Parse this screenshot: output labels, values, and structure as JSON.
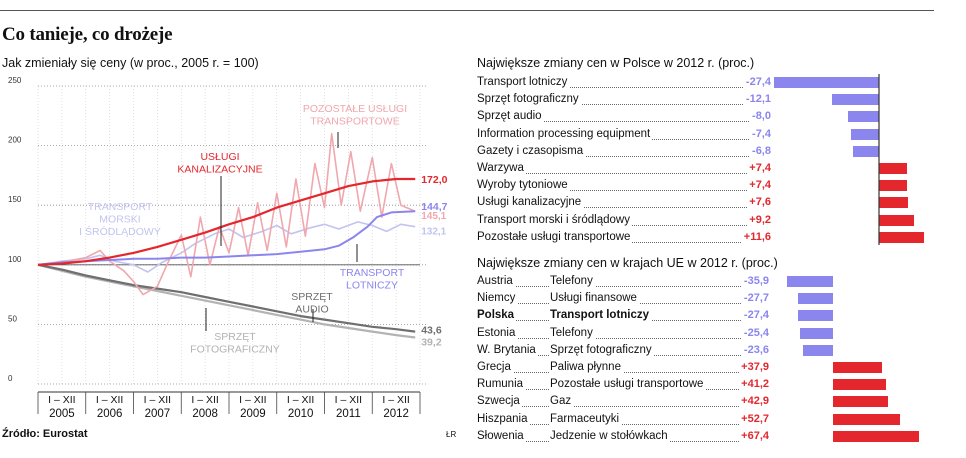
{
  "title": "Co tanieje, co drożeje",
  "subtitle": "Jak zmieniały się ceny (w proc., 2005 r. = 100)",
  "source": "Źródło: Eurostat",
  "credit": "ŁR",
  "colors": {
    "red": "#e3272d",
    "pink": "#f0a7ae",
    "lavender": "#c2c3f0",
    "blue": "#8a86ee",
    "darkgray": "#6f6f6f",
    "lightgray": "#b3b3b3"
  },
  "chart_data": [
    {
      "type": "line",
      "title": "Jak zmieniały się ceny (w proc., 2005 r. = 100)",
      "ylim": [
        0,
        250
      ],
      "yticks": [
        0,
        50,
        100,
        150,
        200,
        250
      ],
      "ytick_labels": [
        "0",
        "50",
        "100",
        "150",
        "200",
        "250"
      ],
      "month_labels": [
        "I – XII",
        "I – XII",
        "I – XII",
        "I – XII",
        "I – XII",
        "I – XII",
        "I – XII",
        "I – XII"
      ],
      "years": [
        "2005",
        "2006",
        "2007",
        "2008",
        "2009",
        "2010",
        "2011",
        "2012"
      ],
      "series": [
        {
          "name": "Usługi kanalizacyjne",
          "label": "USŁUGI KANALIZACYJNE",
          "end_label": "172,0",
          "color": "#e3272d",
          "points": [
            [
              2005.0,
              100
            ],
            [
              2005.5,
              101
            ],
            [
              2006.0,
              103
            ],
            [
              2006.5,
              106
            ],
            [
              2007.0,
              110
            ],
            [
              2007.5,
              115
            ],
            [
              2008.0,
              121
            ],
            [
              2008.5,
              127
            ],
            [
              2009.0,
              134
            ],
            [
              2009.5,
              140
            ],
            [
              2010.0,
              148
            ],
            [
              2010.5,
              154
            ],
            [
              2011.0,
              160
            ],
            [
              2011.5,
              166
            ],
            [
              2012.0,
              170
            ],
            [
              2012.5,
              172
            ],
            [
              2012.9,
              172
            ]
          ]
        },
        {
          "name": "Pozostałe usługi transportowe",
          "label": "POZOSTAŁE USŁUGI TRANSPORTOWE",
          "end_label": "145,1",
          "color": "#f0a7ae",
          "points": [
            [
              2005.0,
              100
            ],
            [
              2005.6,
              103
            ],
            [
              2006.0,
              106
            ],
            [
              2006.3,
              112
            ],
            [
              2006.5,
              103
            ],
            [
              2006.8,
              95
            ],
            [
              2007.0,
              86
            ],
            [
              2007.2,
              75
            ],
            [
              2007.5,
              82
            ],
            [
              2007.7,
              100
            ],
            [
              2008.0,
              125
            ],
            [
              2008.2,
              90
            ],
            [
              2008.4,
              140
            ],
            [
              2008.6,
              100
            ],
            [
              2008.8,
              132
            ],
            [
              2009.0,
              110
            ],
            [
              2009.2,
              148
            ],
            [
              2009.4,
              108
            ],
            [
              2009.6,
              152
            ],
            [
              2009.8,
              112
            ],
            [
              2010.0,
              160
            ],
            [
              2010.2,
              115
            ],
            [
              2010.4,
              172
            ],
            [
              2010.6,
              124
            ],
            [
              2010.8,
              185
            ],
            [
              2011.0,
              148
            ],
            [
              2011.15,
              210
            ],
            [
              2011.35,
              150
            ],
            [
              2011.55,
              195
            ],
            [
              2011.75,
              145
            ],
            [
              2012.0,
              190
            ],
            [
              2012.2,
              140
            ],
            [
              2012.4,
              185
            ],
            [
              2012.6,
              150
            ],
            [
              2012.9,
              145
            ]
          ]
        },
        {
          "name": "Transport morski i śródlądowy",
          "label": "TRANSPORT MORSKI I ŚRÓDLĄDOWY",
          "end_label": "132,1",
          "color": "#c2c3f0",
          "points": [
            [
              2005.0,
              100
            ],
            [
              2005.5,
              103
            ],
            [
              2006.0,
              105
            ],
            [
              2006.3,
              108
            ],
            [
              2006.6,
              103
            ],
            [
              2007.0,
              100
            ],
            [
              2007.3,
              94
            ],
            [
              2007.6,
              102
            ],
            [
              2008.0,
              110
            ],
            [
              2008.3,
              118
            ],
            [
              2008.7,
              126
            ],
            [
              2009.0,
              130
            ],
            [
              2009.3,
              123
            ],
            [
              2009.7,
              128
            ],
            [
              2010.0,
              133
            ],
            [
              2010.3,
              126
            ],
            [
              2010.7,
              131
            ],
            [
              2011.0,
              134
            ],
            [
              2011.3,
              130
            ],
            [
              2011.7,
              136
            ],
            [
              2012.0,
              133
            ],
            [
              2012.3,
              128
            ],
            [
              2012.6,
              134
            ],
            [
              2012.9,
              132
            ]
          ]
        },
        {
          "name": "Transport lotniczy",
          "label": "TRANSPORT LOTNICZY",
          "end_label": "144,7",
          "color": "#8a86ee",
          "points": [
            [
              2005.0,
              100
            ],
            [
              2005.5,
              102
            ],
            [
              2006.0,
              103
            ],
            [
              2006.5,
              104
            ],
            [
              2007.0,
              105
            ],
            [
              2007.5,
              105
            ],
            [
              2008.0,
              106
            ],
            [
              2008.5,
              106
            ],
            [
              2009.0,
              107
            ],
            [
              2009.5,
              108
            ],
            [
              2010.0,
              109
            ],
            [
              2010.5,
              111
            ],
            [
              2011.0,
              113
            ],
            [
              2011.3,
              116
            ],
            [
              2011.6,
              123
            ],
            [
              2011.9,
              132
            ],
            [
              2012.1,
              140
            ],
            [
              2012.4,
              144
            ],
            [
              2012.9,
              145
            ]
          ]
        },
        {
          "name": "Sprzęt audio",
          "label": "SPRZĘT AUDIO",
          "end_label": "43,6",
          "color": "#6f6f6f",
          "points": [
            [
              2005.0,
              100
            ],
            [
              2005.5,
              96
            ],
            [
              2006.0,
              91
            ],
            [
              2006.5,
              87
            ],
            [
              2007.0,
              83
            ],
            [
              2007.5,
              80
            ],
            [
              2008.0,
              77
            ],
            [
              2008.5,
              73
            ],
            [
              2009.0,
              69
            ],
            [
              2009.5,
              65
            ],
            [
              2010.0,
              61
            ],
            [
              2010.5,
              57
            ],
            [
              2011.0,
              54
            ],
            [
              2011.5,
              51
            ],
            [
              2012.0,
              48
            ],
            [
              2012.5,
              46
            ],
            [
              2012.9,
              44
            ]
          ]
        },
        {
          "name": "Sprzęt fotograficzny",
          "label": "SPRZĘT FOTOGRAFICZNY",
          "end_label": "39,2",
          "color": "#b3b3b3",
          "points": [
            [
              2005.0,
              100
            ],
            [
              2005.5,
              95
            ],
            [
              2006.0,
              90
            ],
            [
              2006.5,
              86
            ],
            [
              2007.0,
              82
            ],
            [
              2007.5,
              78
            ],
            [
              2008.0,
              74
            ],
            [
              2008.5,
              70
            ],
            [
              2009.0,
              66
            ],
            [
              2009.5,
              62
            ],
            [
              2010.0,
              58
            ],
            [
              2010.5,
              54
            ],
            [
              2011.0,
              50
            ],
            [
              2011.5,
              47
            ],
            [
              2012.0,
              44
            ],
            [
              2012.5,
              41
            ],
            [
              2012.9,
              39
            ]
          ]
        }
      ]
    },
    {
      "type": "bar",
      "title": "Największe zmiany cen w Polsce w 2012 r. (proc.)",
      "categories": [
        "Transport lotniczy",
        "Sprzęt fotograficzny",
        "Sprzęt audio",
        "Information processing equipment",
        "Gazety i czasopisma",
        "Warzywa",
        "Wyroby tytoniowe",
        "Usługi kanalizacyjne",
        "Transport morski i śródlądowy",
        "Pozostałe usługi transportowe"
      ],
      "values": [
        -27.4,
        -12.1,
        -8.0,
        -7.4,
        -6.8,
        7.4,
        7.4,
        7.6,
        9.2,
        11.6
      ],
      "value_labels": [
        "-27,4",
        "-12,1",
        "-8,0",
        "-7,4",
        "-6,8",
        "+7,4",
        "+7,4",
        "+7,6",
        "+9,2",
        "+11,6"
      ]
    },
    {
      "type": "bar",
      "title": "Największe zmiany cen w krajach UE w 2012 r. (proc.)",
      "countries": [
        "Austria",
        "Niemcy",
        "Polska",
        "Estonia",
        "W. Brytania",
        "Grecja",
        "Rumunia",
        "Szwecja",
        "Hiszpania",
        "Słowenia"
      ],
      "categories": [
        "Telefony",
        "Usługi finansowe",
        "Transport lotniczy",
        "Telefony",
        "Sprzęt fotograficzny",
        "Paliwa płynne",
        "Pozostałe usługi transportowe",
        "Gaz",
        "Farmaceutyki",
        "Jedzenie w stołówkach"
      ],
      "values": [
        -35.9,
        -27.7,
        -27.4,
        -25.4,
        -23.6,
        37.9,
        41.2,
        42.9,
        52.7,
        67.4
      ],
      "value_labels": [
        "-35,9",
        "-27,7",
        "-27,4",
        "-25,4",
        "-23,6",
        "+37,9",
        "+41,2",
        "+42,9",
        "+52,7",
        "+67,4"
      ],
      "highlight": "Polska"
    }
  ]
}
